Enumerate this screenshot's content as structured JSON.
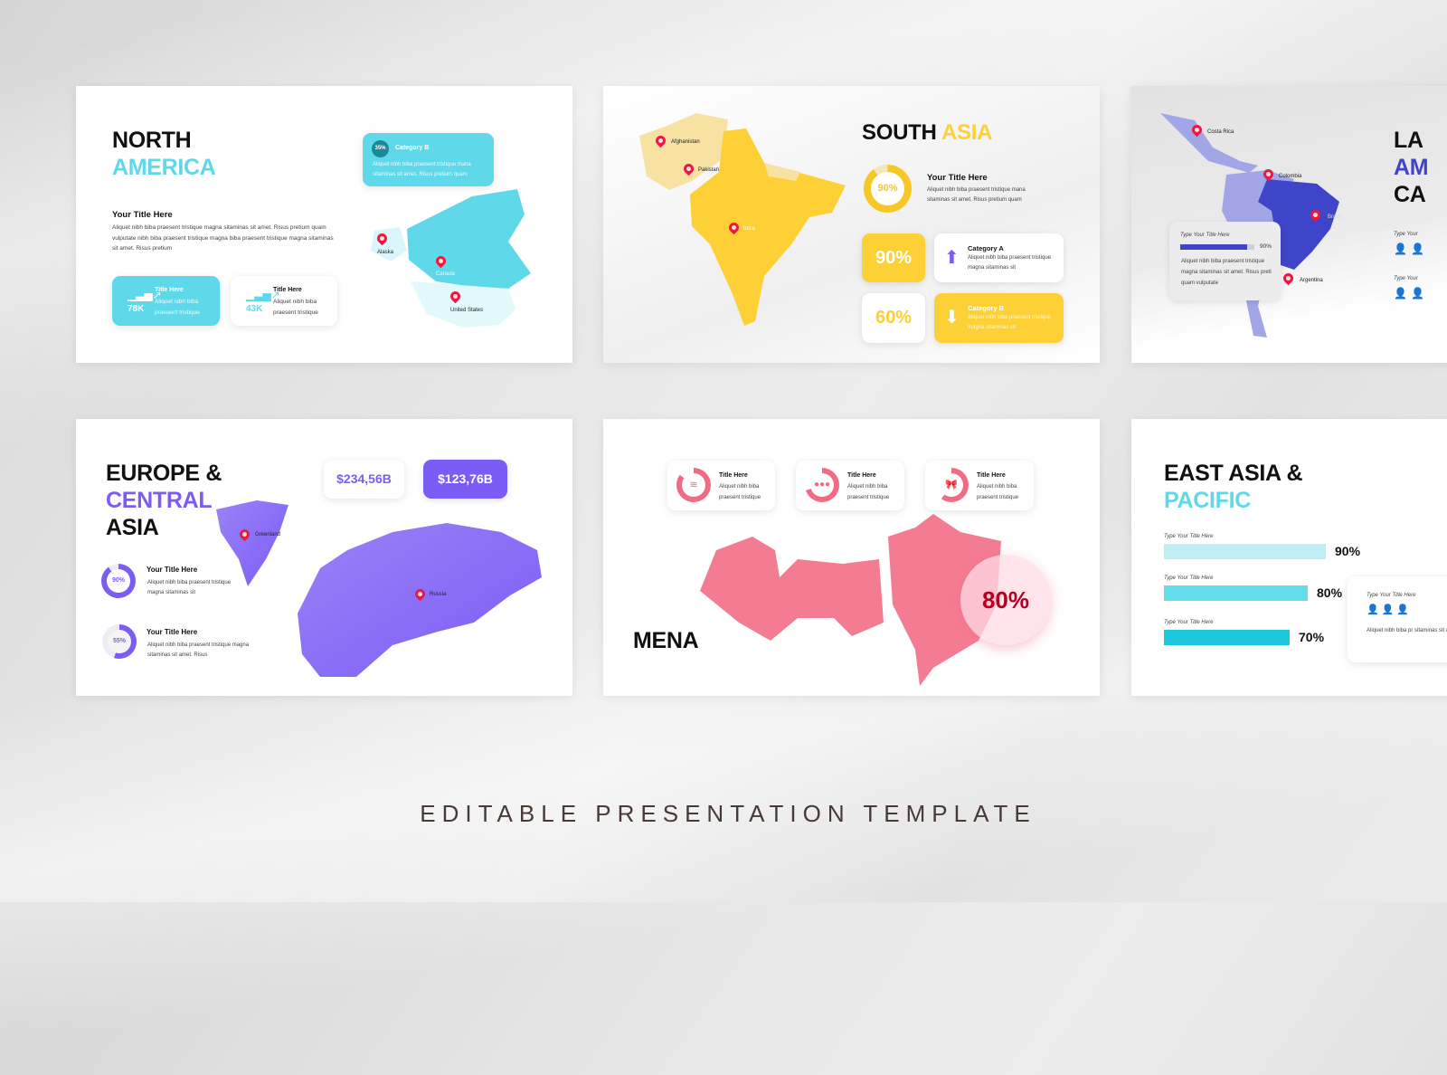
{
  "footer": "EDITABLE PRESENTATION TEMPLATE",
  "colors": {
    "cyan": "#5fd9ea",
    "yellow": "#fdd036",
    "indigo": "#3f45c8",
    "purple": "#7b5cf5",
    "pink": "#f26b84",
    "pin": "#ef1740"
  },
  "north_america": {
    "title_1": "NORTH",
    "title_2": "AMERICA",
    "subtitle": "Your Title Here",
    "body": "Aliquet nibh biba praesent tristique magna sitaminas sit amet. Risus pretium quam vulputate nibh biba praesent tristique magna biba praesent tristique magna sitaminas sit amet. Risus pretium",
    "category": {
      "badge": "35%",
      "title": "Category B",
      "text": "Aliquet nibh biba praesent tristique mana sitaminas sit amet. Risus pretium quam"
    },
    "stats": [
      {
        "value": "78K",
        "title": "Title Here",
        "text": "Aliquet nibh biba praesent tristique",
        "icon": "growth-chart-icon"
      },
      {
        "value": "43K",
        "title": "Title Here",
        "text": "Aliquet nibh biba praesent tristique",
        "icon": "growth-chart-icon"
      }
    ],
    "pins": [
      "Alaska",
      "Canada",
      "United States"
    ]
  },
  "south_asia": {
    "title_1": "SOUTH",
    "title_2": "ASIA",
    "donut": {
      "label": "90%",
      "value": 90
    },
    "subtitle": "Your Title Here",
    "body": "Aliquet nibh biba praesent tristique mana sitaminas sit amet. Risus pretium quam",
    "stat_1": "90%",
    "stat_2": "60%",
    "cat_a": {
      "title": "Category A",
      "text": "Aliquet nibh biba praesent tristique magna sitaminas sit",
      "icon": "arrow-up-icon"
    },
    "cat_b": {
      "title": "Category B",
      "text": "Aliquet nibh biba praesent tristique magna sitaminas sit",
      "icon": "arrow-down-icon"
    },
    "pins": [
      "Afghanistan",
      "Pakistan",
      "India"
    ]
  },
  "latin_america": {
    "title_1": "LA",
    "title_2": "AM",
    "title_3": "CA",
    "card": {
      "label": "Type Your Title Here",
      "percent": "90%",
      "value": 90,
      "text": "Aliquet nibh biba praesent tristique magna sitaminas sit amet. Risus preti quam vulputate"
    },
    "side_label_1": "Type Your",
    "side_label_2": "Type Your",
    "pins": [
      "Costa Rica",
      "Colombia",
      "Brazil",
      "Argentina"
    ]
  },
  "europe": {
    "title_1": "EUROPE &",
    "title_2": "CENTRAL",
    "title_3": "ASIA",
    "value_1": "$234,56B",
    "value_2": "$123,76B",
    "items": [
      {
        "donut": "90%",
        "value": 90,
        "title": "Your Title Here",
        "text": "Aliquet nibh biba praesent tristique magna sitaminas sit"
      },
      {
        "donut": "55%",
        "value": 55,
        "title": "Your Title Here",
        "text": "Aliquet nibh biba praesent tristique magna sitaminas sit amet. Risus"
      }
    ],
    "pins": [
      "Greenland",
      "Russia"
    ]
  },
  "mena": {
    "title": "MENA",
    "percent": "80%",
    "cards": [
      {
        "title": "Title Here",
        "text": "Aliquet nibh biba praesent tristique",
        "icon": "layers-icon"
      },
      {
        "title": "Title Here",
        "text": "Aliquet nibh biba praesent tristique",
        "icon": "team-icon"
      },
      {
        "title": "Title Here",
        "text": "Aliquet nibh biba praesent tristique",
        "icon": "ribbon-icon"
      }
    ]
  },
  "east_asia": {
    "title_1": "EAST ASIA &",
    "title_2": "PACIFIC",
    "bars": [
      {
        "label": "Type Your Title Here",
        "percent": "90%",
        "value": 90,
        "color": "#c0eef5"
      },
      {
        "label": "Type Your Title Here",
        "percent": "80%",
        "value": 80,
        "color": "#64dcea"
      },
      {
        "label": "Type Your Title Here",
        "percent": "70%",
        "value": 70,
        "color": "#1ec9dd"
      }
    ],
    "card": {
      "label": "Type Your Title Here",
      "text": "Aliquet nibh biba pr sitaminas sit amet."
    }
  }
}
